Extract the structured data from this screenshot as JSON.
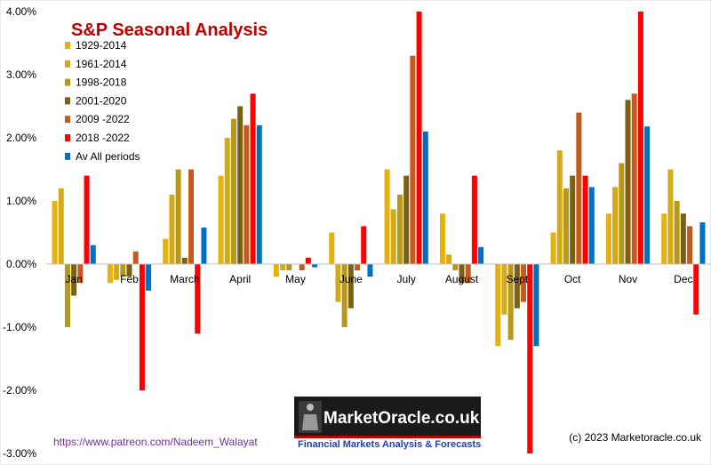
{
  "chart_data": {
    "type": "bar",
    "title": "S&P Seasonal Analysis",
    "categories": [
      "Jan",
      "Feb",
      "March",
      "April",
      "May",
      "June",
      "July",
      "August",
      "Sept",
      "Oct",
      "Nov",
      "Dec"
    ],
    "ylim": [
      -3.0,
      4.0
    ],
    "yticks": [
      -3,
      -2,
      -1,
      0,
      1,
      2,
      3,
      4
    ],
    "ytick_labels": [
      "-3.00%",
      "-2.00%",
      "-1.00%",
      "0.00%",
      "1.00%",
      "2.00%",
      "3.00%",
      "4.00%"
    ],
    "y_unit": "%",
    "grid": false,
    "legend_position": "top-left",
    "series": [
      {
        "name": "1929-2014",
        "color": "#e8b00a",
        "values": [
          1.0,
          -0.3,
          0.4,
          1.4,
          -0.2,
          0.5,
          1.5,
          0.8,
          -1.3,
          0.5,
          0.8,
          0.8
        ]
      },
      {
        "name": "1961-2014",
        "color": "#d4aa18",
        "values": [
          1.2,
          -0.25,
          1.1,
          2.0,
          -0.1,
          -0.6,
          0.87,
          0.15,
          -0.8,
          1.8,
          1.22,
          1.5
        ]
      },
      {
        "name": "1998-2018",
        "color": "#b8981a",
        "values": [
          -1.0,
          -0.2,
          1.5,
          2.3,
          -0.1,
          -1.0,
          1.1,
          -0.1,
          -1.2,
          1.2,
          1.6,
          1.0
        ]
      },
      {
        "name": "2001-2020",
        "color": "#7a6010",
        "values": [
          -0.5,
          -0.2,
          0.1,
          2.5,
          0.0,
          -0.7,
          1.4,
          -0.3,
          -0.7,
          1.4,
          2.6,
          0.8
        ]
      },
      {
        "name": "2009 -2022",
        "color": "#c65a1e",
        "values": [
          -0.3,
          0.2,
          1.5,
          2.2,
          -0.1,
          -0.1,
          3.3,
          -0.3,
          -0.6,
          2.4,
          2.7,
          0.6
        ]
      },
      {
        "name": "2018 -2022",
        "color": "#ff0000",
        "values": [
          1.4,
          -2.0,
          -1.1,
          2.7,
          0.1,
          0.6,
          4.0,
          1.4,
          -3.0,
          1.4,
          4.0,
          -0.8
        ]
      },
      {
        "name": "Av All periods",
        "color": "#0070c0",
        "values": [
          0.3,
          -0.42,
          0.58,
          2.2,
          -0.05,
          -0.2,
          2.1,
          0.27,
          -1.3,
          1.22,
          2.18,
          0.66
        ]
      }
    ]
  },
  "footer": {
    "patreon_link": "https://www.patreon.com/Nadeem_Walayat",
    "copyright": "(c) 2023 Marketoracle.co.uk"
  },
  "logo": {
    "name": "MarketOracle.co.uk",
    "tagline": "Financial Markets Analysis & Forecasts"
  }
}
